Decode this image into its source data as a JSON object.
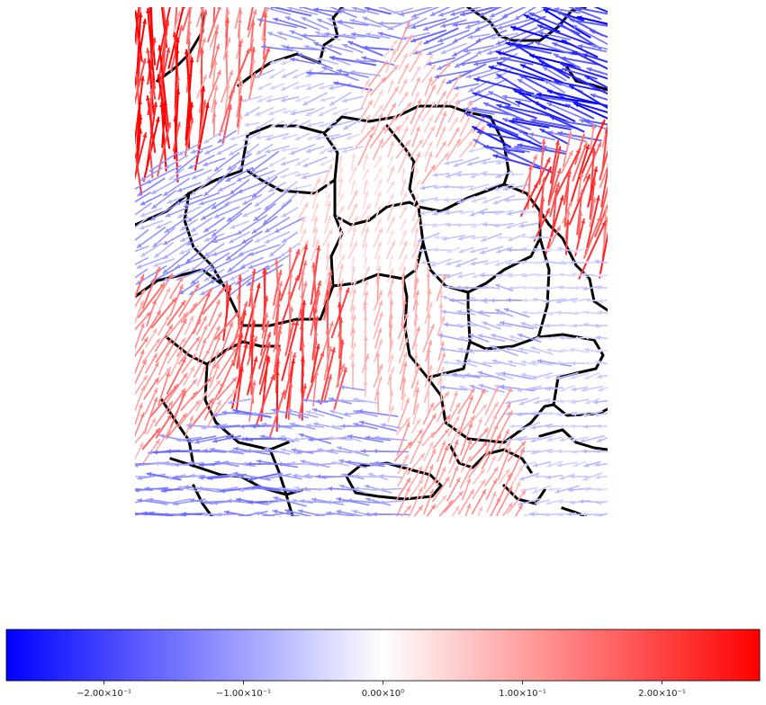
{
  "chart_data": {
    "type": "quiver",
    "title": "",
    "xlabel": "",
    "ylabel": "",
    "axes_visible": false,
    "background": "grain-boundary map (black boundaries on white)",
    "colormap": "bwr",
    "colors": {
      "negative": "#0000ff",
      "zero": "#ffffff",
      "positive": "#ff0000",
      "boundary": "#000000"
    },
    "colorbar": {
      "orientation": "horizontal",
      "placement": "bottom",
      "range": [
        -0.27,
        0.27
      ],
      "ticks": [
        {
          "value": -0.2,
          "label": "−2.00×10⁻¹"
        },
        {
          "value": -0.1,
          "label": "−1.00×10⁻¹"
        },
        {
          "value": 0.0,
          "label": "0.00×10⁰"
        },
        {
          "value": 0.1,
          "label": "1.00×10⁻¹"
        },
        {
          "value": 0.2,
          "label": "2.00×10⁻¹"
        }
      ]
    },
    "grains": [
      {
        "id": 1,
        "center": [
          0.05,
          0.15
        ],
        "angle_deg": 88,
        "value": 0.24
      },
      {
        "id": 2,
        "center": [
          0.18,
          0.1
        ],
        "angle_deg": 80,
        "value": 0.14
      },
      {
        "id": 3,
        "center": [
          0.4,
          0.06
        ],
        "angle_deg": 168,
        "value": -0.12
      },
      {
        "id": 4,
        "center": [
          0.72,
          0.08
        ],
        "angle_deg": 200,
        "value": -0.12
      },
      {
        "id": 5,
        "center": [
          0.85,
          0.18
        ],
        "angle_deg": 160,
        "value": -0.2
      },
      {
        "id": 6,
        "center": [
          0.35,
          0.18
        ],
        "angle_deg": 200,
        "value": -0.06
      },
      {
        "id": 7,
        "center": [
          0.6,
          0.2
        ],
        "angle_deg": 60,
        "value": 0.08
      },
      {
        "id": 8,
        "center": [
          0.95,
          0.38
        ],
        "angle_deg": 75,
        "value": 0.18
      },
      {
        "id": 9,
        "center": [
          0.18,
          0.4
        ],
        "angle_deg": 210,
        "value": -0.1
      },
      {
        "id": 10,
        "center": [
          0.52,
          0.42
        ],
        "angle_deg": 70,
        "value": 0.05
      },
      {
        "id": 11,
        "center": [
          0.72,
          0.42
        ],
        "angle_deg": 190,
        "value": -0.06
      },
      {
        "id": 12,
        "center": [
          0.9,
          0.55
        ],
        "angle_deg": 180,
        "value": -0.05
      },
      {
        "id": 13,
        "center": [
          0.32,
          0.68
        ],
        "angle_deg": 82,
        "value": 0.18
      },
      {
        "id": 14,
        "center": [
          0.58,
          0.65
        ],
        "angle_deg": 80,
        "value": 0.08
      },
      {
        "id": 15,
        "center": [
          0.75,
          0.65
        ],
        "angle_deg": 170,
        "value": -0.08
      },
      {
        "id": 16,
        "center": [
          0.1,
          0.72
        ],
        "angle_deg": 60,
        "value": 0.12
      },
      {
        "id": 17,
        "center": [
          0.4,
          0.88
        ],
        "angle_deg": 175,
        "value": -0.1
      },
      {
        "id": 18,
        "center": [
          0.2,
          0.9
        ],
        "angle_deg": 180,
        "value": -0.12
      },
      {
        "id": 19,
        "center": [
          0.72,
          0.88
        ],
        "angle_deg": 60,
        "value": 0.1
      },
      {
        "id": 20,
        "center": [
          0.9,
          0.85
        ],
        "angle_deg": 190,
        "value": -0.06
      }
    ]
  }
}
